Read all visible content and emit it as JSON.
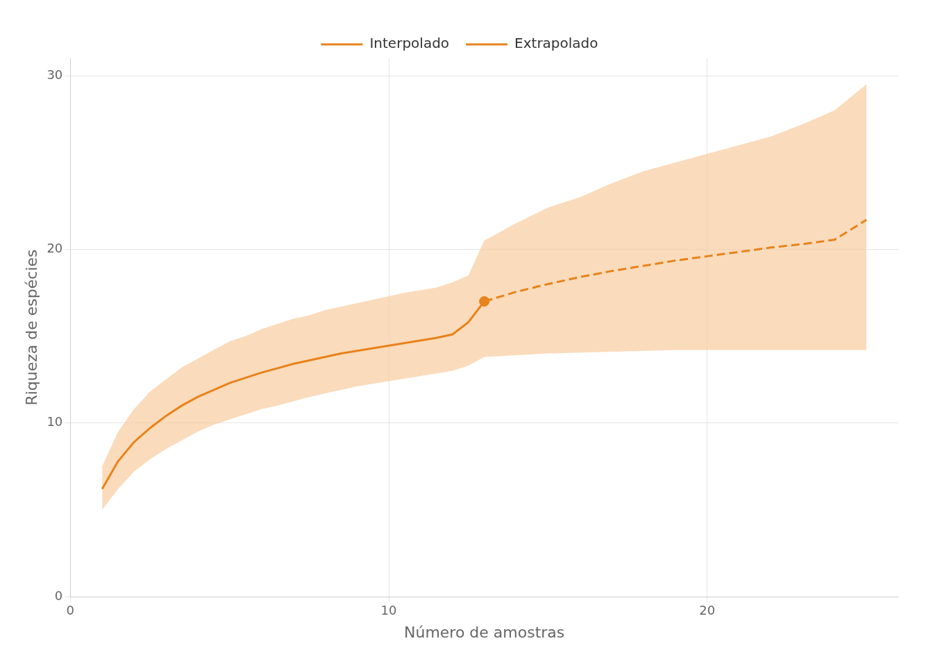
{
  "chart_data": {
    "type": "line",
    "xlabel": "Número de amostras",
    "ylabel": "Riqueza de espécies",
    "xlim": [
      0,
      26
    ],
    "ylim": [
      0,
      31
    ],
    "xticks": [
      0,
      10,
      20
    ],
    "yticks": [
      0,
      10,
      20,
      30
    ],
    "grid": true,
    "legend": "top",
    "series": [
      {
        "name": "Interpolado",
        "color": "#E8821A",
        "line_style": "solid",
        "x": [
          1,
          1.5,
          2,
          2.5,
          3,
          3.5,
          4,
          4.5,
          5,
          5.5,
          6,
          6.5,
          7,
          7.5,
          8,
          8.5,
          9,
          9.5,
          10,
          10.5,
          11,
          11.5,
          12,
          12.5,
          13
        ],
        "values": [
          6.2,
          7.8,
          8.9,
          9.7,
          10.4,
          11.0,
          11.5,
          11.9,
          12.3,
          12.6,
          12.9,
          13.15,
          13.4,
          13.6,
          13.8,
          14.0,
          14.15,
          14.3,
          14.45,
          14.6,
          14.75,
          14.9,
          15.1,
          15.8,
          17.0
        ]
      },
      {
        "name": "Extrapolado",
        "color": "#E8821A",
        "line_style": "dashed",
        "x": [
          13,
          14,
          15,
          16,
          17,
          18,
          19,
          20,
          21,
          22,
          23,
          24,
          25
        ],
        "values": [
          17.0,
          17.55,
          18.0,
          18.4,
          18.75,
          19.05,
          19.35,
          19.6,
          19.85,
          20.1,
          20.3,
          20.55,
          21.7
        ]
      }
    ],
    "confidence_band": {
      "color": "#F8C896",
      "x": [
        1,
        1.5,
        2,
        2.5,
        3,
        3.5,
        4,
        4.5,
        5,
        5.5,
        6,
        6.5,
        7,
        7.5,
        8,
        8.5,
        9,
        9.5,
        10,
        10.5,
        11,
        11.5,
        12,
        12.5,
        13,
        14,
        15,
        16,
        17,
        18,
        19,
        20,
        21,
        22,
        23,
        24,
        25
      ],
      "lower": [
        5.0,
        6.2,
        7.2,
        7.9,
        8.5,
        9.0,
        9.5,
        9.9,
        10.2,
        10.5,
        10.8,
        11.0,
        11.25,
        11.5,
        11.7,
        11.9,
        12.1,
        12.25,
        12.4,
        12.55,
        12.7,
        12.85,
        13.0,
        13.3,
        13.8,
        13.9,
        14.0,
        14.05,
        14.1,
        14.15,
        14.2,
        14.2,
        14.2,
        14.2,
        14.2,
        14.2,
        14.2
      ],
      "upper": [
        7.5,
        9.5,
        10.8,
        11.8,
        12.5,
        13.2,
        13.7,
        14.2,
        14.7,
        15.0,
        15.4,
        15.7,
        16.0,
        16.2,
        16.5,
        16.7,
        16.9,
        17.1,
        17.3,
        17.5,
        17.65,
        17.8,
        18.1,
        18.5,
        20.5,
        21.5,
        22.4,
        23.0,
        23.8,
        24.5,
        25.0,
        25.5,
        26.0,
        26.5,
        27.2,
        28.0,
        29.5
      ]
    },
    "transition_point": {
      "x": 13,
      "y": 17.0,
      "color": "#E8821A",
      "marker": "circle"
    }
  }
}
